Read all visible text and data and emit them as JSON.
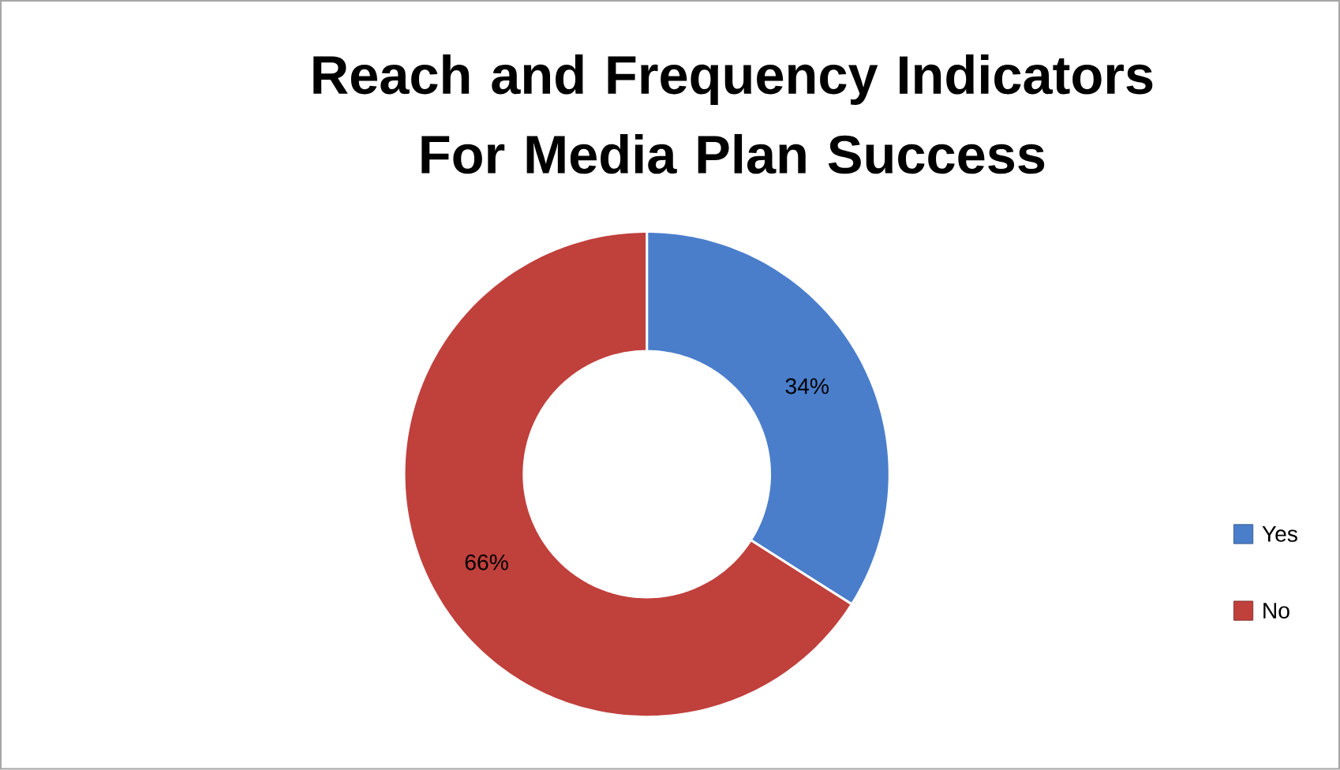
{
  "chart_data": {
    "type": "donut",
    "title": "Reach and Frequency Indicators For Media Plan Success",
    "categories": [
      "Yes",
      "No"
    ],
    "values": [
      34,
      66
    ],
    "colors": [
      "#4a7ecb",
      "#c0403c"
    ],
    "value_labels": [
      "34%",
      "66%"
    ],
    "legend": "right"
  }
}
